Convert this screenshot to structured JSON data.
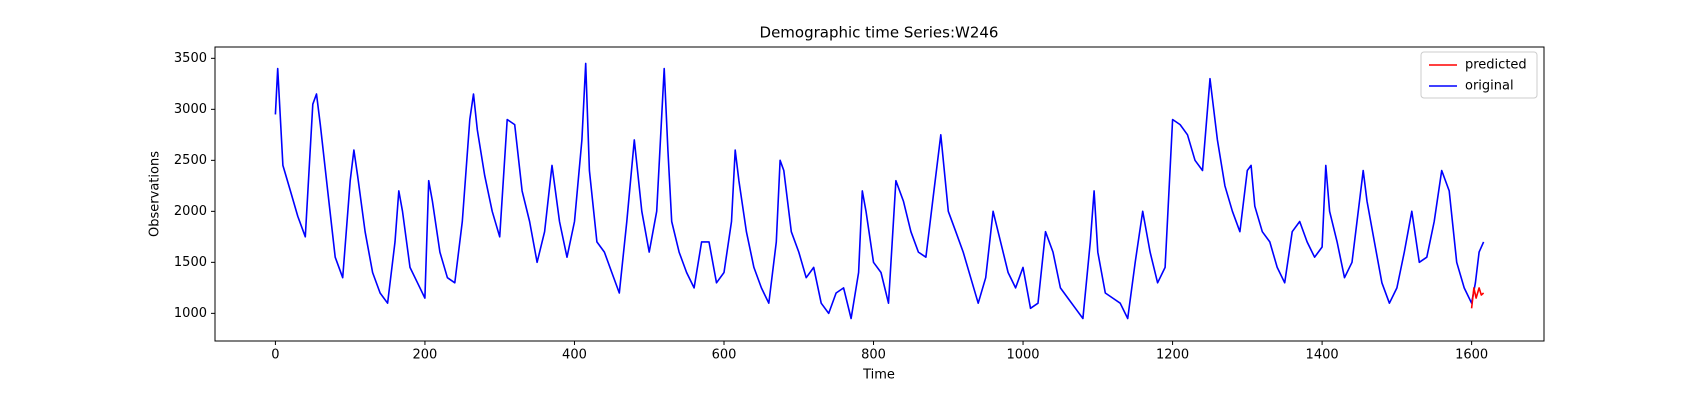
{
  "chart_data": {
    "type": "line",
    "title": "Demographic time Series:W246",
    "x_label": "Time",
    "y_label": "Observations",
    "xlim": [
      -80.8,
      1696.8
    ],
    "ylim": [
      729,
      3611
    ],
    "xticks": [
      0,
      200,
      400,
      600,
      800,
      1000,
      1200,
      1400,
      1600
    ],
    "yticks": [
      1000,
      1500,
      2000,
      2500,
      3000,
      3500
    ],
    "grid": false,
    "legend": "upper right",
    "series": [
      {
        "name": "predicted",
        "color": "#ff0000",
        "x": [
          1600,
          1603,
          1606,
          1610,
          1613,
          1616
        ],
        "values": [
          1050,
          1250,
          1150,
          1250,
          1180,
          1200
        ]
      },
      {
        "name": "original",
        "color": "#0000ff",
        "x": [
          0,
          3,
          10,
          20,
          30,
          40,
          50,
          55,
          60,
          70,
          80,
          90,
          100,
          105,
          110,
          120,
          130,
          140,
          150,
          160,
          165,
          170,
          180,
          190,
          200,
          205,
          210,
          220,
          230,
          240,
          250,
          260,
          265,
          270,
          280,
          290,
          300,
          310,
          320,
          330,
          340,
          350,
          360,
          370,
          380,
          390,
          400,
          410,
          415,
          420,
          430,
          440,
          450,
          460,
          470,
          480,
          490,
          500,
          510,
          520,
          525,
          530,
          540,
          550,
          560,
          570,
          580,
          590,
          600,
          610,
          615,
          620,
          630,
          640,
          650,
          660,
          670,
          675,
          680,
          690,
          700,
          710,
          720,
          730,
          740,
          750,
          760,
          770,
          780,
          785,
          790,
          800,
          810,
          820,
          830,
          840,
          850,
          860,
          870,
          880,
          890,
          900,
          910,
          920,
          930,
          940,
          950,
          960,
          970,
          980,
          990,
          1000,
          1010,
          1020,
          1030,
          1040,
          1050,
          1060,
          1070,
          1080,
          1090,
          1095,
          1100,
          1110,
          1120,
          1130,
          1140,
          1150,
          1160,
          1170,
          1180,
          1190,
          1200,
          1210,
          1220,
          1230,
          1240,
          1250,
          1260,
          1270,
          1280,
          1290,
          1300,
          1305,
          1310,
          1320,
          1330,
          1340,
          1350,
          1360,
          1370,
          1380,
          1390,
          1400,
          1405,
          1410,
          1420,
          1430,
          1440,
          1450,
          1455,
          1460,
          1470,
          1480,
          1490,
          1500,
          1510,
          1520,
          1530,
          1540,
          1550,
          1560,
          1570,
          1580,
          1590,
          1600,
          1605,
          1610,
          1616
        ],
        "values": [
          2950,
          3400,
          2450,
          2200,
          1950,
          1750,
          3050,
          3150,
          2850,
          2200,
          1550,
          1350,
          2300,
          2600,
          2350,
          1800,
          1400,
          1200,
          1100,
          1700,
          2200,
          2000,
          1450,
          1300,
          1150,
          2300,
          2100,
          1600,
          1350,
          1300,
          1900,
          2900,
          3150,
          2800,
          2350,
          2000,
          1750,
          2900,
          2850,
          2200,
          1900,
          1500,
          1800,
          2450,
          1900,
          1550,
          1900,
          2700,
          3450,
          2400,
          1700,
          1600,
          1400,
          1200,
          1900,
          2700,
          2000,
          1600,
          2000,
          3400,
          2600,
          1900,
          1600,
          1400,
          1250,
          1700,
          1700,
          1300,
          1400,
          1900,
          2600,
          2300,
          1800,
          1450,
          1250,
          1100,
          1700,
          2500,
          2400,
          1800,
          1600,
          1350,
          1450,
          1100,
          1000,
          1200,
          1250,
          950,
          1400,
          2200,
          2000,
          1500,
          1400,
          1100,
          2300,
          2100,
          1800,
          1600,
          1550,
          2150,
          2750,
          2000,
          1800,
          1600,
          1350,
          1100,
          1350,
          2000,
          1700,
          1400,
          1250,
          1450,
          1050,
          1100,
          1800,
          1600,
          1250,
          1150,
          1050,
          950,
          1700,
          2200,
          1600,
          1200,
          1150,
          1100,
          950,
          1500,
          2000,
          1600,
          1300,
          1450,
          2900,
          2850,
          2750,
          2500,
          2400,
          3300,
          2700,
          2250,
          2000,
          1800,
          2400,
          2450,
          2050,
          1800,
          1700,
          1450,
          1300,
          1800,
          1900,
          1700,
          1550,
          1650,
          2450,
          2000,
          1700,
          1350,
          1500,
          2100,
          2400,
          2100,
          1700,
          1300,
          1100,
          1250,
          1600,
          2000,
          1500,
          1550,
          1900,
          2400,
          2200,
          1500,
          1250,
          1100,
          1300,
          1600,
          1700
        ]
      }
    ]
  }
}
